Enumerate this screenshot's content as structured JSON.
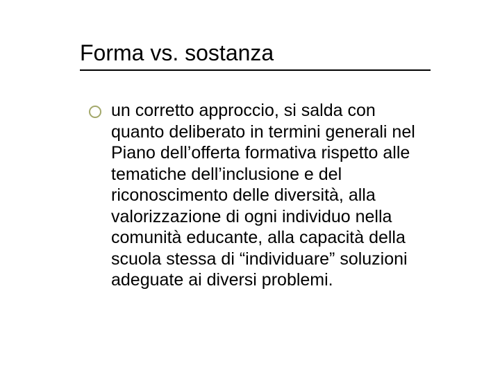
{
  "slide": {
    "title": "Forma vs. sostanza",
    "title_fontsize": 32,
    "title_color": "#000000",
    "underline_color": "#000000",
    "bullet_border_color": "#a3a86b",
    "background_color": "#ffffff",
    "body_fontsize": 25,
    "body_color": "#000000",
    "bullets": [
      {
        "text": "un corretto approccio, si salda con quanto deliberato in termini generali nel Piano dell’offerta formativa rispetto alle tematiche dell’inclusione e del riconoscimento delle diversità, alla valorizzazione di ogni individuo nella comunità educante, alla capacità della scuola stessa di “individuare” soluzioni adeguate ai diversi problemi."
      }
    ]
  }
}
